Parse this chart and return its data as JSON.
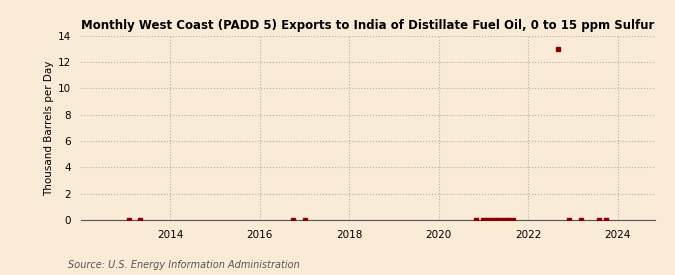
{
  "title": "Monthly West Coast (PADD 5) Exports to India of Distillate Fuel Oil, 0 to 15 ppm Sulfur",
  "ylabel": "Thousand Barrels per Day",
  "source": "Source: U.S. Energy Information Administration",
  "background_color": "#faebd7",
  "plot_bg_color": "#faebd7",
  "xlim": [
    2012.0,
    2024.83
  ],
  "ylim": [
    0,
    14
  ],
  "yticks": [
    0,
    2,
    4,
    6,
    8,
    10,
    12,
    14
  ],
  "xticks": [
    2014,
    2016,
    2018,
    2020,
    2022,
    2024
  ],
  "marker_color": "#8b0000",
  "data_points": [
    [
      2013.08,
      0.0
    ],
    [
      2013.33,
      0.0
    ],
    [
      2016.75,
      0.0
    ],
    [
      2017.0,
      0.0
    ],
    [
      2020.83,
      0.0
    ],
    [
      2021.0,
      0.0
    ],
    [
      2021.08,
      0.0
    ],
    [
      2021.17,
      0.0
    ],
    [
      2021.25,
      0.0
    ],
    [
      2021.33,
      0.0
    ],
    [
      2021.42,
      0.0
    ],
    [
      2021.5,
      0.0
    ],
    [
      2021.58,
      0.0
    ],
    [
      2021.67,
      0.0
    ],
    [
      2022.67,
      13.0
    ],
    [
      2022.92,
      0.0
    ],
    [
      2023.17,
      0.0
    ],
    [
      2023.58,
      0.0
    ],
    [
      2023.75,
      0.0
    ]
  ],
  "title_fontsize": 8.5,
  "axis_fontsize": 7.5,
  "source_fontsize": 7.0,
  "grid_color": "#b0b0b0",
  "grid_style": ":"
}
